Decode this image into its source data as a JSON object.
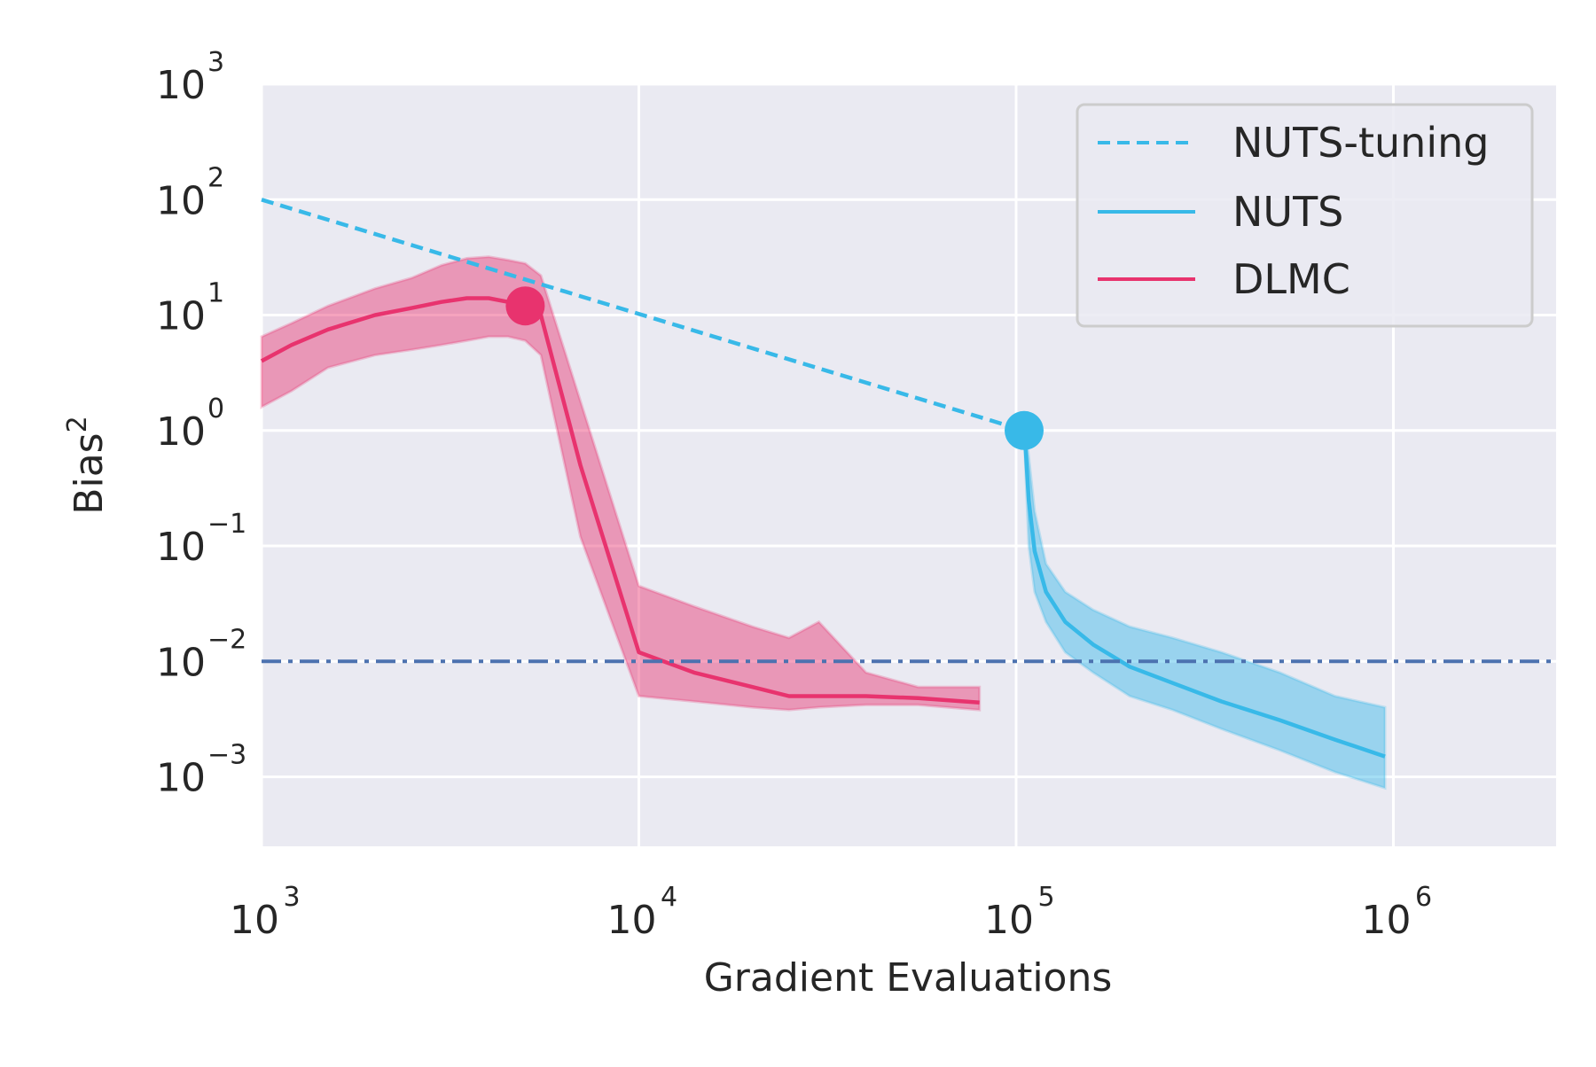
{
  "chart_data": {
    "type": "line",
    "title": "",
    "xlabel": "Gradient Evaluations",
    "ylabel": {
      "base": "Bias",
      "sup": "2"
    },
    "xscale": "log",
    "yscale": "log",
    "xlim": [
      1000,
      2700000
    ],
    "ylim": [
      0.00025,
      1000
    ],
    "grid": true,
    "legend_position": "top-right",
    "x_ticks": [
      {
        "value": 1000,
        "base": "10",
        "exp": "3"
      },
      {
        "value": 10000,
        "base": "10",
        "exp": "4"
      },
      {
        "value": 100000,
        "base": "10",
        "exp": "5"
      },
      {
        "value": 1000000,
        "base": "10",
        "exp": "6"
      }
    ],
    "y_ticks": [
      {
        "value": 1000,
        "base": "10",
        "exp": "3"
      },
      {
        "value": 100,
        "base": "10",
        "exp": "2"
      },
      {
        "value": 10,
        "base": "10",
        "exp": "1"
      },
      {
        "value": 1,
        "base": "10",
        "exp": "0"
      },
      {
        "value": 0.1,
        "base": "10",
        "exp": "−1"
      },
      {
        "value": 0.01,
        "base": "10",
        "exp": "−2"
      },
      {
        "value": 0.001,
        "base": "10",
        "exp": "−3"
      }
    ],
    "reference_line": {
      "y": 0.01,
      "style": "dash-dot",
      "color": "#4c72b0"
    },
    "series": [
      {
        "name": "NUTS-tuning",
        "style": "dashed",
        "color": "#38b9e8",
        "x": [
          1000,
          105000
        ],
        "y": [
          100,
          1.0
        ]
      },
      {
        "name": "NUTS",
        "style": "solid",
        "color": "#38b9e8",
        "x": [
          105000,
          106000,
          108000,
          112000,
          120000,
          135000,
          160000,
          200000,
          260000,
          350000,
          500000,
          700000,
          950000
        ],
        "y": [
          1.0,
          0.7,
          0.25,
          0.09,
          0.04,
          0.022,
          0.014,
          0.009,
          0.0065,
          0.0045,
          0.0031,
          0.0021,
          0.0015
        ],
        "band_upper": [
          1.0,
          0.95,
          0.6,
          0.2,
          0.07,
          0.04,
          0.028,
          0.02,
          0.016,
          0.012,
          0.008,
          0.005,
          0.004
        ],
        "band_lower": [
          1.0,
          0.45,
          0.1,
          0.04,
          0.022,
          0.012,
          0.008,
          0.005,
          0.0038,
          0.0026,
          0.0017,
          0.0011,
          0.0008
        ],
        "marker": {
          "x": 105000,
          "y": 1.0
        }
      },
      {
        "name": "DLMC",
        "style": "solid",
        "color": "#e8336e",
        "x": [
          1000,
          1200,
          1500,
          2000,
          2500,
          3000,
          3500,
          4000,
          4500,
          5000,
          5500,
          7000,
          10000,
          14000,
          20000,
          25000,
          30000,
          40000,
          55000,
          80000
        ],
        "y": [
          4.0,
          5.5,
          7.5,
          10,
          11.5,
          13,
          14,
          14,
          13,
          12,
          10,
          0.5,
          0.012,
          0.008,
          0.006,
          0.005,
          0.005,
          0.005,
          0.0048,
          0.0044
        ],
        "band_upper": [
          6.5,
          8.5,
          12,
          17,
          21,
          27,
          31,
          32,
          30,
          28,
          22,
          1.8,
          0.045,
          0.03,
          0.02,
          0.016,
          0.022,
          0.008,
          0.006,
          0.006
        ],
        "band_lower": [
          1.6,
          2.2,
          3.5,
          4.5,
          5,
          5.5,
          6,
          6.5,
          6.5,
          6,
          4.5,
          0.12,
          0.005,
          0.0045,
          0.004,
          0.0038,
          0.004,
          0.0042,
          0.0042,
          0.0038
        ],
        "marker": {
          "x": 5000,
          "y": 12
        }
      }
    ]
  }
}
